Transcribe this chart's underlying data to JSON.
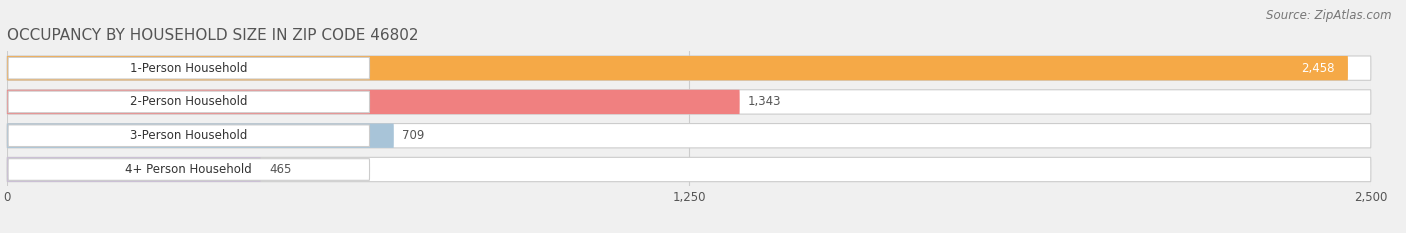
{
  "title": "OCCUPANCY BY HOUSEHOLD SIZE IN ZIP CODE 46802",
  "source": "Source: ZipAtlas.com",
  "categories": [
    "1-Person Household",
    "2-Person Household",
    "3-Person Household",
    "4+ Person Household"
  ],
  "values": [
    2458,
    1343,
    709,
    465
  ],
  "bar_colors": [
    "#F5A947",
    "#F08080",
    "#A8C4D8",
    "#C9B8D8"
  ],
  "background_color": "#f0f0f0",
  "bar_background_color": "#e8e8e8",
  "bar_row_background": "#ffffff",
  "xlim": [
    0,
    2500
  ],
  "xticks": [
    0,
    1250,
    2500
  ],
  "title_fontsize": 11,
  "label_fontsize": 8.5,
  "value_fontsize": 8.5,
  "source_fontsize": 8.5
}
